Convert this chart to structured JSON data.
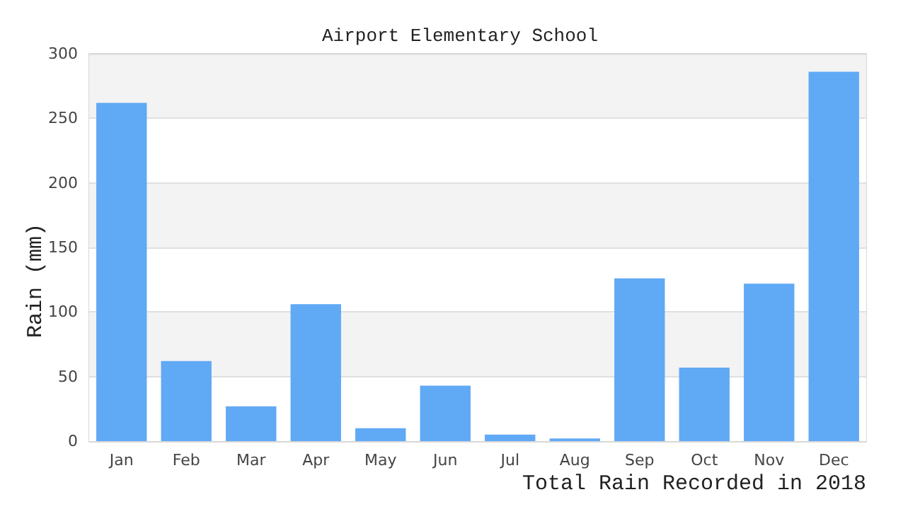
{
  "chart_data": {
    "type": "bar",
    "title": "Airport Elementary School",
    "xlabel": "Total Rain Recorded in 2018",
    "ylabel": "Rain (mm)",
    "categories": [
      "Jan",
      "Feb",
      "Mar",
      "Apr",
      "May",
      "Jun",
      "Jul",
      "Aug",
      "Sep",
      "Oct",
      "Nov",
      "Dec"
    ],
    "values": [
      262,
      62,
      27,
      106,
      10,
      43,
      5,
      2,
      126,
      57,
      122,
      286
    ],
    "color": "#60a9f5",
    "ylim": [
      0,
      300
    ],
    "yticks": [
      0,
      50,
      100,
      150,
      200,
      250,
      300
    ],
    "grid": "y"
  }
}
